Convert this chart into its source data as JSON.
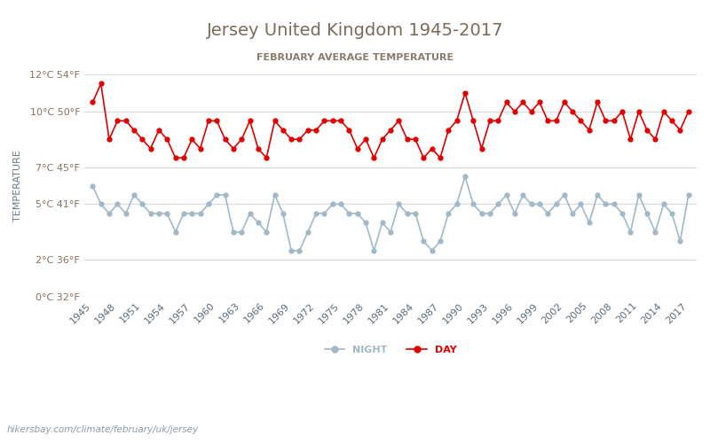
{
  "title": "Jersey United Kingdom 1945-2017",
  "subtitle": "FEBRUARY AVERAGE TEMPERATURE",
  "ylabel": "TEMPERATURE",
  "xlabel_url": "hikersbay.com/climate/february/uk/jersey",
  "years": [
    1945,
    1946,
    1947,
    1948,
    1949,
    1950,
    1951,
    1952,
    1953,
    1954,
    1955,
    1956,
    1957,
    1958,
    1959,
    1960,
    1961,
    1962,
    1963,
    1964,
    1965,
    1966,
    1967,
    1968,
    1969,
    1970,
    1971,
    1972,
    1973,
    1974,
    1975,
    1976,
    1977,
    1978,
    1979,
    1980,
    1981,
    1982,
    1983,
    1984,
    1985,
    1986,
    1987,
    1988,
    1989,
    1990,
    1991,
    1992,
    1993,
    1994,
    1995,
    1996,
    1997,
    1998,
    1999,
    2000,
    2001,
    2002,
    2003,
    2004,
    2005,
    2006,
    2007,
    2008,
    2009,
    2010,
    2011,
    2012,
    2013,
    2014,
    2015,
    2016,
    2017
  ],
  "day": [
    10.5,
    11.5,
    8.5,
    9.5,
    9.5,
    9.0,
    8.5,
    8.0,
    9.0,
    8.5,
    7.5,
    7.5,
    8.5,
    8.0,
    9.5,
    9.5,
    8.5,
    8.0,
    8.5,
    9.5,
    8.0,
    7.5,
    9.5,
    9.0,
    8.5,
    8.5,
    9.0,
    9.0,
    9.5,
    9.5,
    9.5,
    9.0,
    8.0,
    8.5,
    7.5,
    8.5,
    9.0,
    9.5,
    8.5,
    8.5,
    7.5,
    8.0,
    7.5,
    9.0,
    9.5,
    11.0,
    9.5,
    8.0,
    9.5,
    9.5,
    10.5,
    10.0,
    10.5,
    10.0,
    10.5,
    9.5,
    9.5,
    10.5,
    10.0,
    9.5,
    9.0,
    10.5,
    9.5,
    9.5,
    10.0,
    8.5,
    10.0,
    9.0,
    8.5,
    10.0,
    9.5,
    9.0,
    10.0
  ],
  "night": [
    6.0,
    5.0,
    4.5,
    5.0,
    4.5,
    5.5,
    5.0,
    4.5,
    4.5,
    4.5,
    3.5,
    4.5,
    4.5,
    4.5,
    5.0,
    5.5,
    5.5,
    3.5,
    3.5,
    4.5,
    4.0,
    3.5,
    5.5,
    4.5,
    2.5,
    2.5,
    3.5,
    4.5,
    4.5,
    5.0,
    5.0,
    4.5,
    4.5,
    4.0,
    2.5,
    4.0,
    3.5,
    5.0,
    4.5,
    4.5,
    3.0,
    2.5,
    3.0,
    4.5,
    5.0,
    6.5,
    5.0,
    4.5,
    4.5,
    5.0,
    5.5,
    4.5,
    5.5,
    5.0,
    5.0,
    4.5,
    5.0,
    5.5,
    4.5,
    5.0,
    4.0,
    5.5,
    5.0,
    5.0,
    4.5,
    3.5,
    5.5,
    4.5,
    3.5,
    5.0,
    4.5,
    3.0,
    5.5
  ],
  "day_color": "#e00000",
  "night_color": "#a0b8c8",
  "title_color": "#7a6a5a",
  "subtitle_color": "#8a7a6a",
  "ytick_color": "#8a7060",
  "xtick_color": "#5a6a7a",
  "ylabel_color": "#6a7a8a",
  "url_color": "#8a9aaa",
  "grid_color": "#d8d8d8",
  "background_color": "#ffffff",
  "ylim_celsius": [
    0,
    12
  ],
  "yticks_celsius": [
    0,
    2,
    5,
    7,
    10,
    12
  ],
  "yticks_fahrenheit": [
    32,
    36,
    41,
    45,
    50,
    54
  ]
}
